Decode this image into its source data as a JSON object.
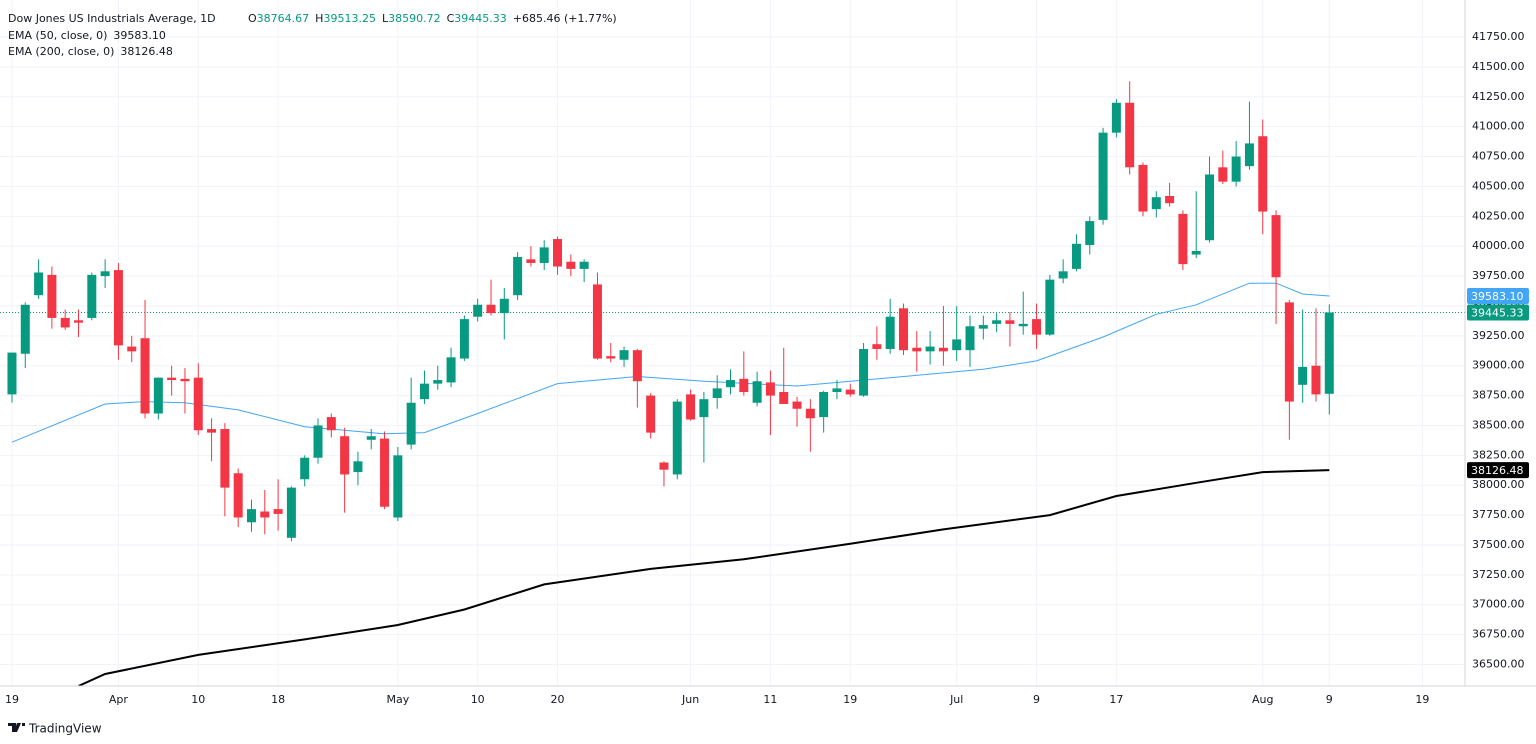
{
  "chart_data": {
    "type": "candlestick",
    "title": "Dow Jones US Industrials Average, 1D",
    "ohlc_legend": [
      {
        "key": "O",
        "value": 38764.67
      },
      {
        "key": "H",
        "value": 39513.25
      },
      {
        "key": "L",
        "value": 38590.72
      },
      {
        "key": "C",
        "value": 39445.33
      }
    ],
    "change": "+685.46 (+1.77%)",
    "up_color": "#089981",
    "down_color": "#f23645",
    "open": [
      38760,
      39100,
      39590,
      39760,
      39400,
      39380,
      39400,
      39750,
      39800,
      39160,
      39230,
      38600,
      38900,
      38890,
      38900,
      38470,
      38470,
      38100,
      37690,
      37780,
      37800,
      37560,
      38050,
      38230,
      38570,
      38410,
      38110,
      38380,
      38390,
      37730,
      38340,
      38720,
      38850,
      38860,
      39060,
      39410,
      39510,
      39440,
      39590,
      39890,
      39860,
      40060,
      39870,
      39810,
      39680,
      39080,
      39050,
      39130,
      38750,
      38190,
      38090,
      38760,
      38570,
      38730,
      38820,
      38890,
      38690,
      38860,
      38780,
      38700,
      38640,
      38570,
      38780,
      38800,
      38750,
      39180,
      39140,
      39480,
      39150,
      39120,
      39150,
      39130,
      39130,
      39310,
      39350,
      39380,
      39330,
      39390,
      39260,
      39730,
      39810,
      40010,
      40220,
      40950,
      41200,
      40680,
      40310,
      40420,
      40270,
      39930,
      40050,
      40660,
      40540,
      40670,
      40920,
      40260,
      39530,
      38840,
      39000,
      38764.67
    ],
    "high": [
      39110,
      39530,
      39890,
      39830,
      39470,
      39470,
      39780,
      39890,
      39860,
      39250,
      39550,
      38900,
      39000,
      38980,
      39020,
      38560,
      38520,
      38140,
      37880,
      37960,
      38050,
      37990,
      38250,
      38560,
      38600,
      38480,
      38280,
      38470,
      38450,
      38320,
      38900,
      38960,
      39000,
      39150,
      39420,
      39560,
      39720,
      39650,
      39950,
      40000,
      40050,
      40080,
      39930,
      39890,
      39780,
      39190,
      39160,
      39140,
      38770,
      38200,
      38720,
      38800,
      38780,
      38920,
      38970,
      39120,
      38950,
      38960,
      39150,
      38740,
      38720,
      38790,
      38880,
      38850,
      39190,
      39330,
      39560,
      39520,
      39290,
      39290,
      39500,
      39500,
      39420,
      39420,
      39440,
      39450,
      39620,
      39520,
      39760,
      39890,
      40100,
      40250,
      40990,
      41230,
      41380,
      40700,
      40460,
      40530,
      40300,
      40460,
      40750,
      40800,
      40880,
      41210,
      41060,
      40300,
      39550,
      39470,
      39480,
      39513.25
    ],
    "low": [
      38690,
      38980,
      39560,
      39310,
      39300,
      39240,
      39380,
      39650,
      39050,
      39030,
      38560,
      38550,
      38750,
      38600,
      38420,
      38200,
      37740,
      37650,
      37610,
      37590,
      37620,
      37530,
      37990,
      38180,
      38400,
      37770,
      38000,
      38300,
      37800,
      37700,
      38300,
      38680,
      38800,
      38820,
      39040,
      39370,
      39420,
      39220,
      39550,
      39830,
      39800,
      39760,
      39750,
      39700,
      39050,
      39030,
      38990,
      38650,
      38390,
      37990,
      38050,
      38540,
      38190,
      38640,
      38760,
      38750,
      38660,
      38420,
      38700,
      38490,
      38280,
      38440,
      38720,
      38740,
      38740,
      39050,
      39100,
      39090,
      38950,
      39010,
      39000,
      39040,
      38990,
      39220,
      39280,
      39160,
      39260,
      39140,
      39250,
      39690,
      39790,
      39930,
      40180,
      40910,
      40600,
      40250,
      40240,
      40330,
      39800,
      39900,
      40030,
      40520,
      40500,
      40640,
      40100,
      39350,
      38380,
      38690,
      38700,
      38590.72
    ],
    "close": [
      39110,
      39510,
      39780,
      39400,
      39320,
      39360,
      39760,
      39790,
      39170,
      39120,
      38600,
      38900,
      38880,
      38870,
      38460,
      38440,
      37980,
      37730,
      37800,
      37730,
      37760,
      37980,
      38230,
      38500,
      38460,
      38090,
      38200,
      38410,
      37820,
      38250,
      38690,
      38850,
      38880,
      39070,
      39390,
      39510,
      39440,
      39560,
      39910,
      39860,
      39990,
      39830,
      39810,
      39870,
      39060,
      39060,
      39130,
      38870,
      38440,
      38130,
      38700,
      38550,
      38720,
      38810,
      38880,
      38780,
      38870,
      38750,
      38680,
      38640,
      38560,
      38780,
      38810,
      38760,
      39140,
      39140,
      39410,
      39130,
      39120,
      39160,
      39120,
      39220,
      39330,
      39340,
      39380,
      39350,
      39350,
      39260,
      39720,
      39790,
      40020,
      40210,
      40950,
      41200,
      40660,
      40290,
      40410,
      40360,
      39850,
      39960,
      40600,
      40540,
      40750,
      40860,
      40290,
      39740,
      38700,
      38990,
      38760,
      39445.33
    ],
    "series": [
      {
        "name": "EMA (50, close, 0)",
        "color": "#42a5f5",
        "price_label": "39583.10",
        "x": [
          0,
          7,
          10,
          13,
          17,
          22,
          28,
          31,
          35,
          41,
          47,
          52,
          59,
          66,
          73,
          77,
          82,
          86,
          89,
          93,
          95,
          97,
          99
        ],
        "values": [
          38360,
          38680,
          38700,
          38690,
          38630,
          38490,
          38430,
          38440,
          38600,
          38850,
          38910,
          38870,
          38830,
          38900,
          38970,
          39040,
          39240,
          39430,
          39510,
          39690,
          39690,
          39600,
          39583.1
        ]
      },
      {
        "name": "EMA (200, close, 0)",
        "color": "#000000",
        "price_label": "38126.48",
        "x": [
          5,
          7,
          14,
          22,
          29,
          34,
          40,
          48,
          55,
          63,
          70,
          78,
          83,
          89,
          94,
          99
        ],
        "values": [
          36320,
          36420,
          36580,
          36710,
          36830,
          36960,
          37170,
          37300,
          37380,
          37510,
          37630,
          37750,
          37910,
          38020,
          38110,
          38126.48
        ]
      }
    ],
    "xlim": [
      -0.9,
      109.2
    ],
    "xticks": [
      {
        "value": 0,
        "label": "19"
      },
      {
        "value": 8,
        "label": "Apr"
      },
      {
        "value": 14,
        "label": "10"
      },
      {
        "value": 20,
        "label": "18"
      },
      {
        "value": 29,
        "label": "May"
      },
      {
        "value": 35,
        "label": "10"
      },
      {
        "value": 41,
        "label": "20"
      },
      {
        "value": 51,
        "label": "Jun"
      },
      {
        "value": 57,
        "label": "11"
      },
      {
        "value": 63,
        "label": "19"
      },
      {
        "value": 71,
        "label": "Jul"
      },
      {
        "value": 77,
        "label": "9"
      },
      {
        "value": 83,
        "label": "17"
      },
      {
        "value": 94,
        "label": "Aug"
      },
      {
        "value": 99,
        "label": "9"
      },
      {
        "value": 106,
        "label": "19"
      }
    ],
    "ylim": [
      36320,
      42060
    ],
    "yticks": [
      {
        "value": 36500,
        "label": "36500.00"
      },
      {
        "value": 36750,
        "label": "36750.00"
      },
      {
        "value": 37000,
        "label": "37000.00"
      },
      {
        "value": 37250,
        "label": "37250.00"
      },
      {
        "value": 37500,
        "label": "37500.00"
      },
      {
        "value": 37750,
        "label": "37750.00"
      },
      {
        "value": 38000,
        "label": "38000.00"
      },
      {
        "value": 38250,
        "label": "38250.00"
      },
      {
        "value": 38500,
        "label": "38500.00"
      },
      {
        "value": 38750,
        "label": "38750.00"
      },
      {
        "value": 39000,
        "label": "39000.00"
      },
      {
        "value": 39250,
        "label": "39250.00"
      },
      {
        "value": 39500,
        "label": "39500.00"
      },
      {
        "value": 39750,
        "label": "39750.00"
      },
      {
        "value": 40000,
        "label": "40000.00"
      },
      {
        "value": 40250,
        "label": "40250.00"
      },
      {
        "value": 40500,
        "label": "40500.00"
      },
      {
        "value": 40750,
        "label": "40750.00"
      },
      {
        "value": 41000,
        "label": "41000.00"
      },
      {
        "value": 41250,
        "label": "41250.00"
      },
      {
        "value": 41500,
        "label": "41500.00"
      },
      {
        "value": 41750,
        "label": "41750.00"
      }
    ],
    "grid": true
  },
  "branding": "TradingView"
}
